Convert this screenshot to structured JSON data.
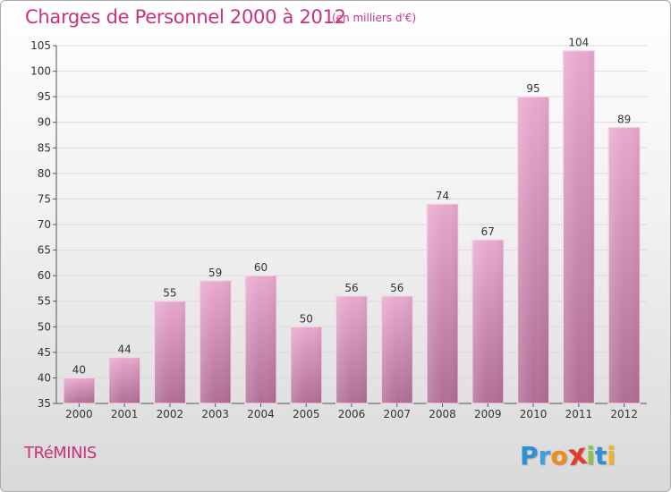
{
  "header": {
    "title": "Charges de Personnel 2000 à 2012",
    "subtitle": "(en milliers d'€)"
  },
  "footer": {
    "commune": "TRéMINIS",
    "logo_text": "Proxiti",
    "logo_letters": [
      {
        "ch": "P",
        "color": "#2f8fd6"
      },
      {
        "ch": "r",
        "color": "#3aa0e0"
      },
      {
        "ch": "o",
        "color": "#f28a1c"
      },
      {
        "ch": "x",
        "color": "#e23d2c"
      },
      {
        "ch": "i",
        "color": "#8cc63f"
      },
      {
        "ch": "t",
        "color": "#2f8fd6"
      },
      {
        "ch": "i",
        "color": "#f2b51c"
      }
    ]
  },
  "chart_data": {
    "type": "bar",
    "title": "Charges de Personnel 2000 à 2012",
    "subtitle": "(en milliers d'€)",
    "categories": [
      "2000",
      "2001",
      "2002",
      "2003",
      "2004",
      "2005",
      "2006",
      "2007",
      "2008",
      "2009",
      "2010",
      "2011",
      "2012"
    ],
    "values": [
      40,
      44,
      55,
      59,
      60,
      50,
      56,
      56,
      74,
      67,
      95,
      104,
      89
    ],
    "ylim": [
      35,
      105
    ],
    "yticks": [
      35,
      40,
      45,
      50,
      55,
      60,
      65,
      70,
      75,
      80,
      85,
      90,
      95,
      100,
      105
    ],
    "grid": true,
    "legend": "none",
    "bar_color": "#d98fb8",
    "text_color": "#c9327c"
  }
}
